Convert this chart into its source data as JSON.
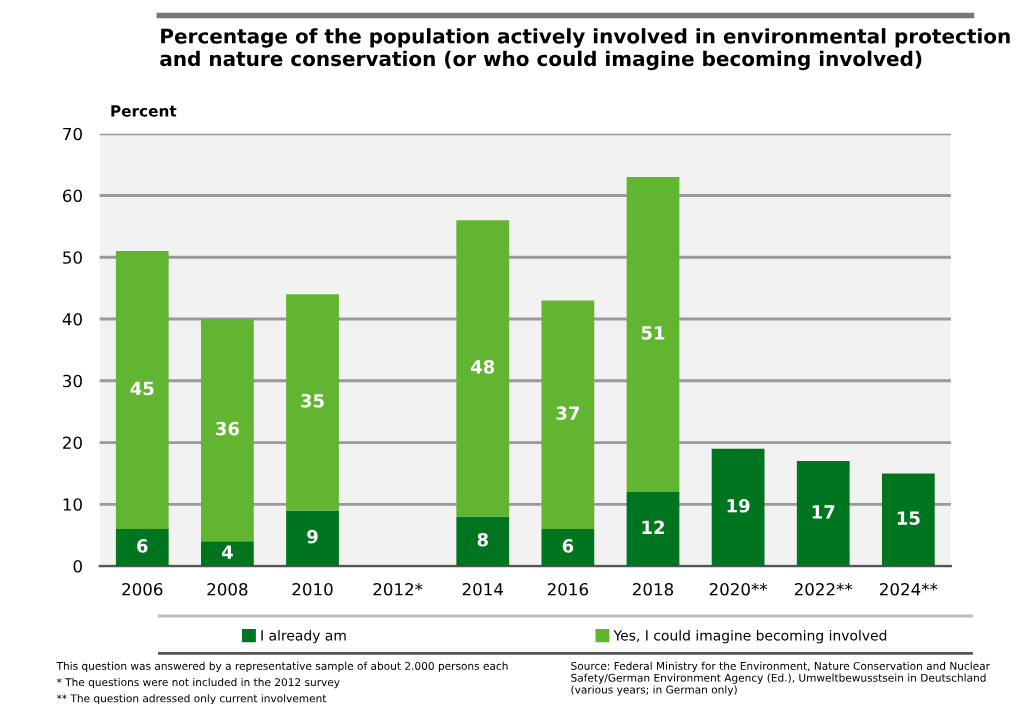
{
  "chart_data": {
    "type": "bar",
    "title": "Percentage of the population actively involved in environmental protection and nature conservation (or who could imagine becoming involved)",
    "ylabel": "Percent",
    "categories": [
      "2006",
      "2008",
      "2010",
      "2012*",
      "2014",
      "2016",
      "2018",
      "2020**",
      "2022**",
      "2024**"
    ],
    "series": [
      {
        "name": "I already am",
        "color": "#00751f",
        "values": [
          6,
          4,
          9,
          null,
          8,
          6,
          12,
          19,
          17,
          15
        ]
      },
      {
        "name": "Yes, I could imagine becoming involved",
        "color": "#62b531",
        "values": [
          45,
          36,
          35,
          null,
          48,
          37,
          51,
          null,
          null,
          null
        ]
      }
    ],
    "stacked": true,
    "data_labels": true,
    "ylim": [
      0,
      70
    ],
    "yticks": [
      0,
      10,
      20,
      30,
      40,
      50,
      60,
      70
    ],
    "grid": "y",
    "legend": "bottom",
    "annotations": [
      "This question was answered by a representative sample of about 2.000 persons each",
      "* The questions were not included in the 2012 survey",
      "** The question adressed only current involvement",
      "Source: Federal Ministry for the Environment, Nature Conservation and Nuclear Safety/German Environment Agency (Ed.), Umweltbewusstsein in Deutschland (various years; in German only)"
    ]
  }
}
